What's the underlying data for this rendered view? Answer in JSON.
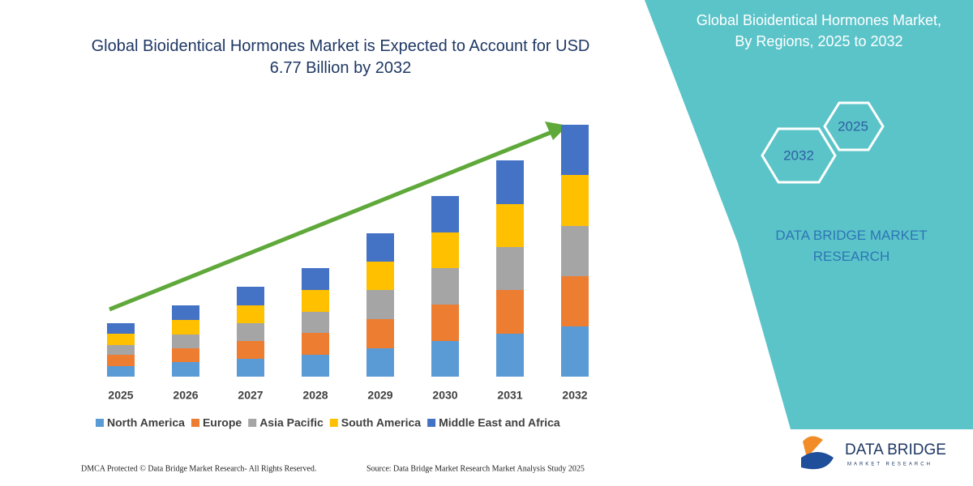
{
  "chart_data": {
    "type": "bar",
    "stacked": true,
    "title": "Global Bioidentical Hormones Market is Expected to Account for USD 6.77 Billion by 2032",
    "categories": [
      "2025",
      "2026",
      "2027",
      "2028",
      "2029",
      "2030",
      "2031",
      "2032"
    ],
    "series": [
      {
        "name": "North America",
        "color": "#5b9bd5",
        "values": [
          13,
          18,
          22,
          27,
          35,
          44,
          53,
          62
        ]
      },
      {
        "name": "Europe",
        "color": "#ed7d31",
        "values": [
          14,
          17,
          22,
          27,
          36,
          45,
          54,
          62
        ]
      },
      {
        "name": "Asia Pacific",
        "color": "#a5a5a5",
        "values": [
          12,
          17,
          22,
          26,
          36,
          45,
          53,
          62
        ]
      },
      {
        "name": "South America",
        "color": "#ffc000",
        "values": [
          14,
          18,
          22,
          27,
          35,
          44,
          53,
          63
        ]
      },
      {
        "name": "Middle East and Africa",
        "color": "#4472c4",
        "values": [
          13,
          18,
          23,
          27,
          35,
          45,
          54,
          62
        ]
      }
    ],
    "legend": "bottom"
  },
  "panel": {
    "title": "Global Bioidentical Hormones Market, By Regions, 2025 to 2032",
    "hexagons": [
      "2025",
      "2032"
    ],
    "brand": "DATA BRIDGE MARKET RESEARCH"
  },
  "logo": {
    "name": "DATA BRIDGE",
    "tagline": "MARKET RESEARCH"
  },
  "footer": {
    "left": "DMCA Protected © Data Bridge Market Research- All Rights Reserved.",
    "right": "Source: Data Bridge Market Research Market Analysis Study 2025"
  }
}
